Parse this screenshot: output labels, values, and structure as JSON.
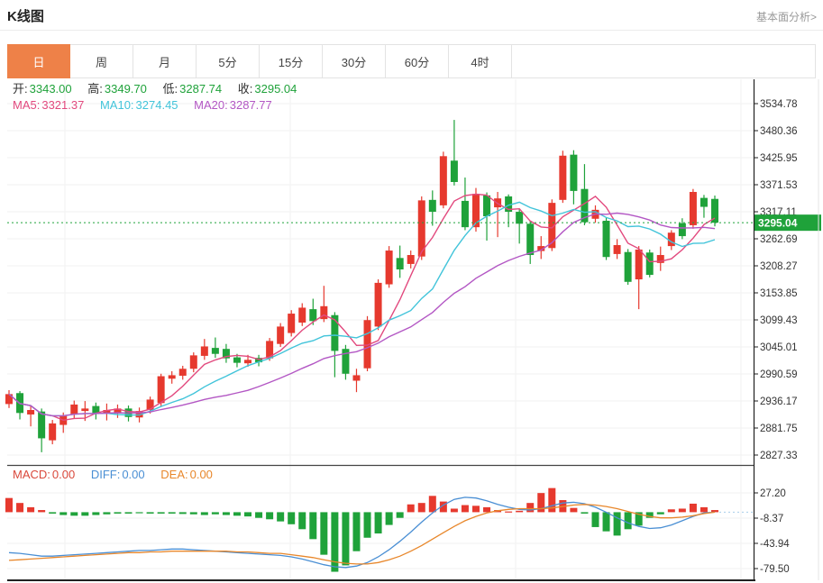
{
  "header": {
    "title": "K线图",
    "link": "基本面分析>"
  },
  "tabs": {
    "items": [
      "日",
      "周",
      "月",
      "5分",
      "15分",
      "30分",
      "60分",
      "4时"
    ],
    "active_index": 0
  },
  "readout": {
    "open_label": "开:",
    "open": "3343.00",
    "high_label": "高:",
    "high": "3349.70",
    "low_label": "低:",
    "low": "3287.74",
    "close_label": "收:",
    "close": "3295.04",
    "ma5_label": "MA5:",
    "ma5": "3321.37",
    "ma10_label": "MA10:",
    "ma10": "3274.45",
    "ma20_label": "MA20:",
    "ma20": "3287.77",
    "macd_label": "MACD:",
    "macd": "0.00",
    "diff_label": "DIFF:",
    "diff": "0.00",
    "dea_label": "DEA:",
    "dea": "0.00"
  },
  "colors": {
    "up": "#e6392e",
    "down": "#1fa23a",
    "ma5": "#e2497e",
    "ma10": "#42c4da",
    "ma20": "#b357c4",
    "diff_line": "#4a8fd4",
    "dea_line": "#e8872b",
    "diff_dotted": "#a8cdea",
    "price_tag_bg": "#1fa23a",
    "price_tag_text": "#ffffff",
    "tab_active_bg": "#ee8148",
    "axis_text": "#333333",
    "grid": "#f2f2f2",
    "dark_line": "#222222",
    "panel_divider": "#444444",
    "light_border": "#e5e5e5"
  },
  "chart_data": {
    "type": "candlestick+macd",
    "title": "K线图 日K (daily candles with MA5/MA10/MA20 and MACD)",
    "price_axis_ticks": [
      "3534.78",
      "3480.36",
      "3425.95",
      "3371.53",
      "3317.11",
      "3262.69",
      "3208.27",
      "3153.85",
      "3099.43",
      "3045.01",
      "2990.59",
      "2936.17",
      "2881.75",
      "2827.33"
    ],
    "macd_axis_ticks": [
      "27.20",
      "-8.37",
      "-43.94",
      "-79.50"
    ],
    "current_price": 3295.04,
    "ma_periods": [
      5,
      10,
      20
    ],
    "candles_ohlc": [
      [
        2930,
        2958,
        2922,
        2950
      ],
      [
        2952,
        2956,
        2899,
        2912
      ],
      [
        2909,
        2926,
        2885,
        2918
      ],
      [
        2915,
        2921,
        2833,
        2861
      ],
      [
        2857,
        2898,
        2849,
        2891
      ],
      [
        2888,
        2913,
        2872,
        2906
      ],
      [
        2910,
        2937,
        2901,
        2929
      ],
      [
        2916,
        2936,
        2896,
        2921
      ],
      [
        2926,
        2933,
        2899,
        2911
      ],
      [
        2912,
        2931,
        2897,
        2918
      ],
      [
        2911,
        2929,
        2902,
        2921
      ],
      [
        2921,
        2927,
        2895,
        2904
      ],
      [
        2903,
        2923,
        2893,
        2916
      ],
      [
        2918,
        2945,
        2911,
        2939
      ],
      [
        2932,
        2991,
        2926,
        2986
      ],
      [
        2981,
        2996,
        2971,
        2988
      ],
      [
        2987,
        3007,
        2979,
        3001
      ],
      [
        3001,
        3034,
        2994,
        3028
      ],
      [
        3027,
        3061,
        3019,
        3046
      ],
      [
        3043,
        3064,
        3023,
        3031
      ],
      [
        3041,
        3051,
        3013,
        3022
      ],
      [
        3024,
        3031,
        3004,
        3013
      ],
      [
        3012,
        3029,
        3005,
        3019
      ],
      [
        3023,
        3029,
        3006,
        3014
      ],
      [
        3022,
        3063,
        3017,
        3057
      ],
      [
        3051,
        3093,
        3045,
        3086
      ],
      [
        3073,
        3119,
        3066,
        3112
      ],
      [
        3094,
        3133,
        3087,
        3124
      ],
      [
        3121,
        3142,
        3089,
        3097
      ],
      [
        3101,
        3168,
        3095,
        3127
      ],
      [
        3109,
        3115,
        2984,
        3037
      ],
      [
        3041,
        3049,
        2979,
        2991
      ],
      [
        2977,
        3001,
        2954,
        2988
      ],
      [
        3002,
        3107,
        2996,
        3099
      ],
      [
        3086,
        3181,
        3079,
        3174
      ],
      [
        3171,
        3248,
        3164,
        3239
      ],
      [
        3224,
        3249,
        3184,
        3201
      ],
      [
        3212,
        3239,
        3203,
        3230
      ],
      [
        3227,
        3348,
        3220,
        3340
      ],
      [
        3341,
        3360,
        3289,
        3317
      ],
      [
        3330,
        3438,
        3324,
        3429
      ],
      [
        3420,
        3502,
        3370,
        3377
      ],
      [
        3339,
        3386,
        3280,
        3286
      ],
      [
        3286,
        3365,
        3277,
        3353
      ],
      [
        3350,
        3356,
        3259,
        3308
      ],
      [
        3326,
        3357,
        3266,
        3344
      ],
      [
        3348,
        3352,
        3286,
        3317
      ],
      [
        3317,
        3322,
        3253,
        3293
      ],
      [
        3293,
        3298,
        3212,
        3230
      ],
      [
        3238,
        3268,
        3222,
        3248
      ],
      [
        3244,
        3342,
        3238,
        3335
      ],
      [
        3341,
        3440,
        3335,
        3430
      ],
      [
        3432,
        3441,
        3332,
        3359
      ],
      [
        3363,
        3413,
        3290,
        3296
      ],
      [
        3303,
        3330,
        3295,
        3321
      ],
      [
        3299,
        3305,
        3220,
        3226
      ],
      [
        3232,
        3262,
        3222,
        3250
      ],
      [
        3236,
        3242,
        3170,
        3176
      ],
      [
        3181,
        3248,
        3121,
        3241
      ],
      [
        3235,
        3241,
        3185,
        3190
      ],
      [
        3214,
        3247,
        3198,
        3230
      ],
      [
        3248,
        3280,
        3240,
        3275
      ],
      [
        3294,
        3304,
        3262,
        3268
      ],
      [
        3290,
        3363,
        3283,
        3357
      ],
      [
        3345,
        3351,
        3305,
        3327
      ],
      [
        3343,
        3349.7,
        3287.74,
        3295.04
      ]
    ],
    "macd_hist": [
      20,
      13,
      7,
      3,
      -2,
      -4,
      -5,
      -5,
      -4,
      -3,
      -2,
      -2,
      -1.5,
      -2,
      -2,
      -2,
      -2.5,
      -3,
      -4,
      -3,
      -4,
      -5,
      -6,
      -8,
      -10,
      -13,
      -17,
      -24,
      -38,
      -60,
      -84,
      -75,
      -55,
      -36,
      -30,
      -18,
      -8,
      11,
      13,
      23,
      15,
      5,
      10,
      9,
      7,
      3,
      1,
      2,
      13,
      27,
      34,
      17,
      6,
      -2,
      -21,
      -27,
      -33,
      -24,
      -19,
      -8,
      -3,
      4,
      5,
      12,
      7,
      3
    ],
    "diff_line": [
      -57,
      -58,
      -60,
      -62,
      -62,
      -61,
      -60,
      -59,
      -58,
      -57,
      -56,
      -55,
      -54,
      -54,
      -53,
      -52,
      -52,
      -53,
      -54,
      -55,
      -56,
      -57,
      -58,
      -59,
      -60,
      -61,
      -63,
      -66,
      -70,
      -74,
      -77,
      -78,
      -76,
      -71,
      -63,
      -53,
      -41,
      -28,
      -14,
      -1,
      10,
      18,
      21,
      20,
      16,
      11,
      7,
      4,
      3,
      5,
      9,
      13,
      14,
      12,
      7,
      0,
      -8,
      -15,
      -20,
      -23,
      -22,
      -18,
      -12,
      -6,
      -1,
      0
    ],
    "dea_line": [
      -68,
      -67,
      -66,
      -65,
      -64,
      -63,
      -62,
      -61,
      -60,
      -59,
      -58,
      -57,
      -57,
      -56,
      -56,
      -55,
      -55,
      -55,
      -55,
      -55,
      -55,
      -56,
      -56,
      -57,
      -58,
      -58,
      -60,
      -62,
      -64,
      -67,
      -70,
      -72,
      -73,
      -73,
      -71,
      -67,
      -62,
      -55,
      -47,
      -38,
      -29,
      -20,
      -12,
      -6,
      -1,
      2,
      4,
      5,
      5,
      5,
      6,
      8,
      10,
      11,
      10,
      8,
      5,
      1,
      -3,
      -6,
      -8,
      -8,
      -7,
      -5,
      -2,
      0
    ]
  }
}
